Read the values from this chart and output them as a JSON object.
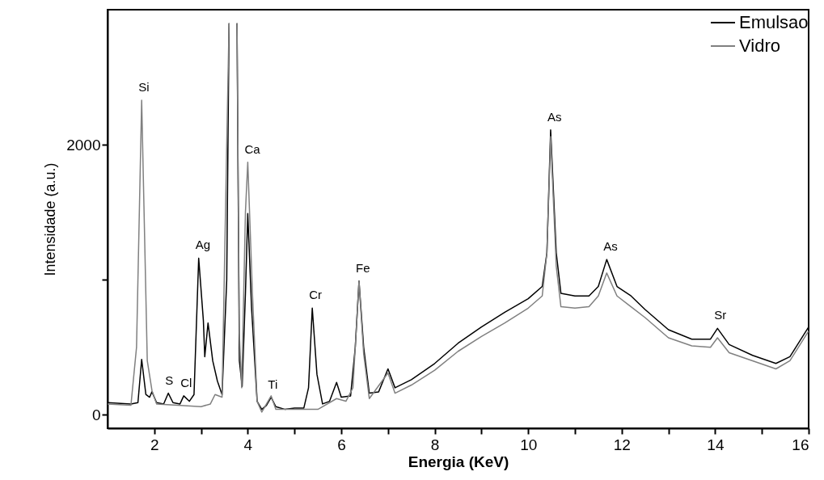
{
  "chart_data": {
    "type": "line",
    "xlabel": "Energia (KeV)",
    "ylabel": "Intensidade (a.u.)",
    "xlim": [
      1,
      16
    ],
    "ylim": [
      -100,
      3000
    ],
    "xticks": [
      {
        "value": 3,
        "label": null
      },
      2,
      4,
      6,
      8,
      10,
      12,
      14,
      16,
      {
        "value": 5,
        "label": null
      },
      {
        "value": 7,
        "label": null
      },
      {
        "value": 9,
        "label": null
      },
      {
        "value": 11,
        "label": null
      },
      {
        "value": 13,
        "label": null
      },
      {
        "value": 15,
        "label": null
      }
    ],
    "yticks": [
      0,
      {
        "value": 1000,
        "label": null
      },
      2000
    ],
    "grid": false,
    "legend": "top right",
    "series": [
      {
        "name": "Emulsao",
        "color": "#000000",
        "x": [
          1.0,
          1.5,
          1.65,
          1.73,
          1.82,
          1.9,
          1.95,
          2.05,
          2.2,
          2.3,
          2.4,
          2.55,
          2.63,
          2.75,
          2.85,
          2.95,
          3.05,
          3.08,
          3.15,
          3.25,
          3.35,
          3.45,
          3.55,
          3.6,
          3.62,
          3.75,
          3.77,
          3.82,
          3.88,
          3.95,
          4.0,
          4.08,
          4.2,
          4.3,
          4.4,
          4.5,
          4.6,
          4.8,
          5.0,
          5.2,
          5.3,
          5.38,
          5.48,
          5.6,
          5.75,
          5.9,
          6.0,
          6.2,
          6.3,
          6.38,
          6.48,
          6.6,
          6.8,
          7.0,
          7.15,
          7.5,
          8.0,
          8.5,
          9.0,
          9.5,
          10.0,
          10.3,
          10.4,
          10.48,
          10.6,
          10.7,
          11.0,
          11.3,
          11.5,
          11.68,
          11.9,
          12.2,
          12.5,
          13.0,
          13.5,
          13.9,
          14.05,
          14.3,
          14.8,
          15.3,
          15.6,
          16.0
        ],
        "values": [
          90,
          80,
          90,
          410,
          150,
          130,
          170,
          90,
          80,
          160,
          90,
          80,
          140,
          100,
          150,
          1160,
          700,
          430,
          680,
          400,
          250,
          150,
          1000,
          2900,
          null,
          null,
          2900,
          400,
          210,
          900,
          1490,
          800,
          100,
          40,
          70,
          130,
          60,
          40,
          50,
          50,
          200,
          790,
          300,
          80,
          100,
          240,
          130,
          140,
          500,
          990,
          500,
          160,
          170,
          340,
          200,
          260,
          380,
          530,
          650,
          760,
          860,
          950,
          1200,
          2110,
          1200,
          900,
          880,
          880,
          950,
          1150,
          950,
          880,
          780,
          630,
          560,
          560,
          640,
          520,
          440,
          380,
          430,
          650
        ]
      },
      {
        "name": "Vidro",
        "color": "#808080",
        "x": [
          1.0,
          1.5,
          1.62,
          1.73,
          1.85,
          1.95,
          2.05,
          2.5,
          3.0,
          3.2,
          3.3,
          3.45,
          3.55,
          3.6,
          3.62,
          3.75,
          3.77,
          3.82,
          3.87,
          3.95,
          4.0,
          4.1,
          4.2,
          4.3,
          4.5,
          4.6,
          5.0,
          5.5,
          5.9,
          6.1,
          6.25,
          6.38,
          6.48,
          6.6,
          7.0,
          7.15,
          7.5,
          8.0,
          8.5,
          9.0,
          9.5,
          10.0,
          10.3,
          10.4,
          10.48,
          10.6,
          10.7,
          11.0,
          11.3,
          11.5,
          11.68,
          11.9,
          12.2,
          12.5,
          13.0,
          13.5,
          13.9,
          14.05,
          14.3,
          14.8,
          15.3,
          15.6,
          16.0
        ],
        "values": [
          80,
          70,
          500,
          2330,
          400,
          180,
          80,
          70,
          60,
          80,
          150,
          130,
          2000,
          2900,
          null,
          null,
          2900,
          600,
          200,
          1500,
          1870,
          900,
          100,
          20,
          140,
          40,
          40,
          40,
          120,
          100,
          200,
          990,
          450,
          120,
          310,
          160,
          220,
          330,
          470,
          580,
          680,
          790,
          880,
          1200,
          2060,
          1100,
          800,
          790,
          800,
          880,
          1050,
          880,
          800,
          720,
          570,
          510,
          500,
          570,
          460,
          400,
          340,
          400,
          620
        ]
      }
    ],
    "annotations": [
      {
        "text": "Si",
        "x": 1.73,
        "y": 2330
      },
      {
        "text": "S",
        "x": 2.3,
        "y": 160
      },
      {
        "text": "Cl",
        "x": 2.63,
        "y": 140
      },
      {
        "text": "Ag",
        "x": 2.95,
        "y": 1160
      },
      {
        "text": "Ca",
        "x": 4.0,
        "y": 1870
      },
      {
        "text": "Ti",
        "x": 4.5,
        "y": 130
      },
      {
        "text": "Cr",
        "x": 5.38,
        "y": 790
      },
      {
        "text": "Fe",
        "x": 6.38,
        "y": 990
      },
      {
        "text": "As",
        "x": 10.48,
        "y": 2110
      },
      {
        "text": "As",
        "x": 11.68,
        "y": 1150
      },
      {
        "text": "Sr",
        "x": 14.05,
        "y": 640
      }
    ]
  }
}
